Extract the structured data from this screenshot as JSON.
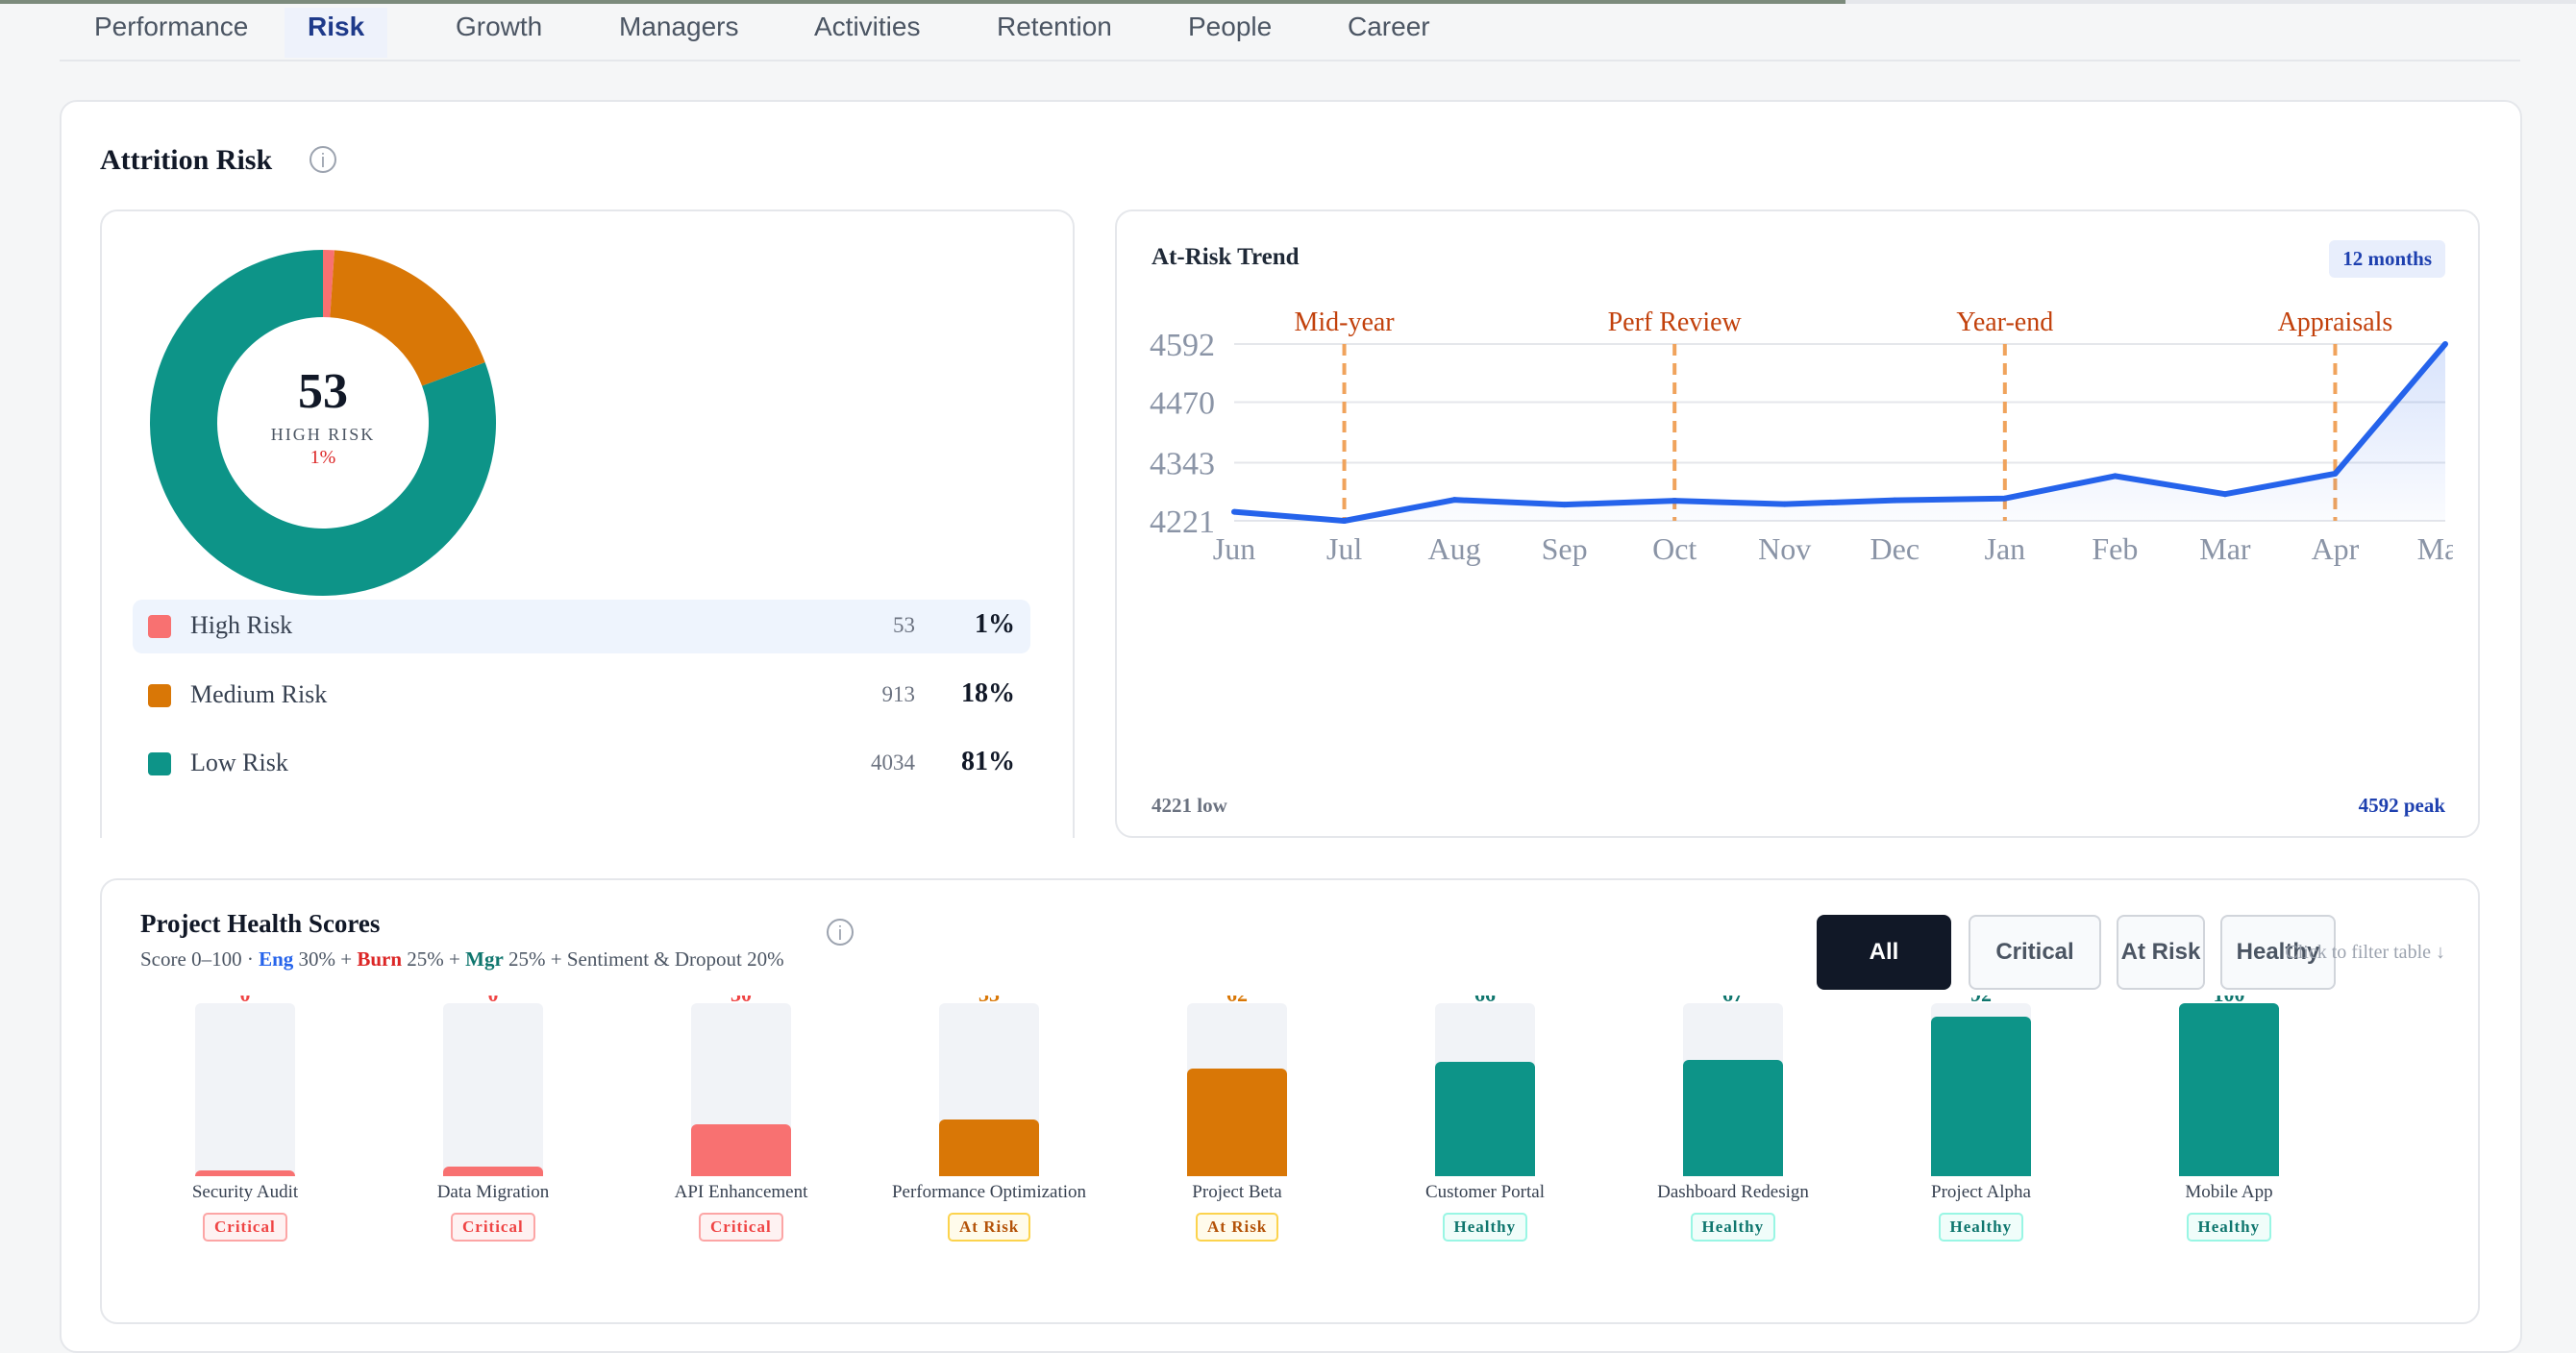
{
  "tabs": [
    {
      "label": "Performance"
    },
    {
      "label": "Risk",
      "active": true
    },
    {
      "label": "Growth"
    },
    {
      "label": "Managers"
    },
    {
      "label": "Activities"
    },
    {
      "label": "Retention"
    },
    {
      "label": "People"
    },
    {
      "label": "Career"
    }
  ],
  "attrition": {
    "title": "Attrition Risk",
    "info_icon": "info-icon",
    "donut": {
      "center_value": "53",
      "center_label": "HIGH RISK",
      "center_pct": "1%"
    },
    "legend": [
      {
        "name": "High Risk",
        "count": "53",
        "pct": "1%",
        "color": "#f87171"
      },
      {
        "name": "Medium Risk",
        "count": "913",
        "pct": "18%",
        "color": "#d97706"
      },
      {
        "name": "Low Risk",
        "count": "4034",
        "pct": "81%",
        "color": "#0d9488"
      }
    ]
  },
  "trend": {
    "title": "At-Risk Trend",
    "range_badge": "12 months",
    "low_label": "4221 low",
    "peak_label": "4592 peak"
  },
  "projects": {
    "title": "Project Health Scores",
    "subtitle_prefix": "Score 0–100 · ",
    "eng_label": "Eng",
    "eng_weight": " 30% + ",
    "burn_label": "Burn",
    "burn_weight": " 25% + ",
    "mgr_label": "Mgr",
    "mgr_weight": " 25% + Sentiment & Dropout 20%",
    "filters": [
      {
        "label": "All",
        "active": true
      },
      {
        "label": "Critical"
      },
      {
        "label": "At Risk"
      },
      {
        "label": "Healthy"
      }
    ],
    "filter_hint": "Click to filter table ↓"
  },
  "colors": {
    "critical": "#f87171",
    "at_risk": "#d97706",
    "healthy": "#0d9488",
    "line": "#2563eb",
    "event": "#f0a35c"
  },
  "chart_data": [
    {
      "type": "pie",
      "categories": [
        "High Risk",
        "Medium Risk",
        "Low Risk"
      ],
      "values": [
        53,
        913,
        4034
      ],
      "colors": [
        "#f87171",
        "#d97706",
        "#0d9488"
      ],
      "title": ""
    },
    {
      "type": "line",
      "title": "At-Risk Trend",
      "x": [
        "Jun",
        "Jul",
        "Aug",
        "Sep",
        "Oct",
        "Nov",
        "Dec",
        "Jan",
        "Feb",
        "Mar",
        "Apr",
        "May"
      ],
      "series": [
        {
          "values": [
            4240,
            4221,
            4265,
            4255,
            4263,
            4256,
            4264,
            4268,
            4315,
            4277,
            4320,
            4592
          ]
        }
      ],
      "yticks": [
        4221,
        4343,
        4470,
        4592
      ],
      "ylim": [
        4221,
        4592
      ],
      "annotations": [
        {
          "x": "Jul",
          "label": "Mid-year"
        },
        {
          "x": "Oct",
          "label": "Perf Review"
        },
        {
          "x": "Jan",
          "label": "Year-end"
        },
        {
          "x": "Apr",
          "label": "Appraisals"
        }
      ],
      "grid": true
    },
    {
      "type": "bar",
      "title": "Project Health Scores",
      "categories": [
        "Security Audit",
        "Data Migration",
        "API Enhancement",
        "Performance Optimization",
        "Project Beta",
        "Customer Portal",
        "Dashboard Redesign",
        "Project Alpha",
        "Mobile App"
      ],
      "values": [
        0,
        0,
        30,
        33,
        62,
        66,
        67,
        92,
        100
      ],
      "status": [
        "Critical",
        "Critical",
        "Critical",
        "At Risk",
        "At Risk",
        "Healthy",
        "Healthy",
        "Healthy",
        "Healthy"
      ],
      "ylim": [
        0,
        100
      ]
    }
  ]
}
